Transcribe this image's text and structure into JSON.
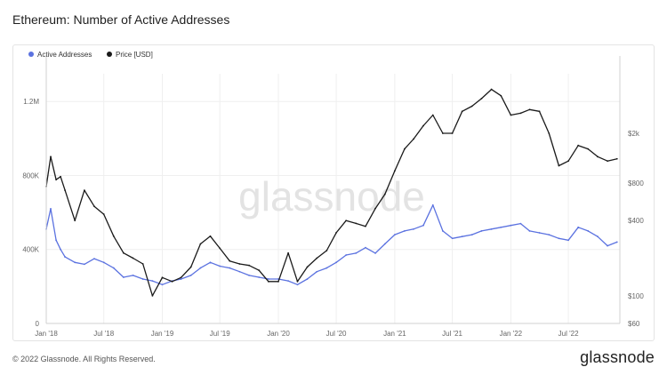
{
  "title": "Ethereum: Number of Active Addresses",
  "footer": {
    "copyright": "© 2022 Glassnode. All Rights Reserved.",
    "brand": "glassnode"
  },
  "watermark": "glassnode",
  "colors": {
    "active": "#5b72e0",
    "price": "#1a1a1a",
    "grid": "#efefef",
    "axis_text": "#666666"
  },
  "chart_data": {
    "type": "line",
    "legend": [
      {
        "name": "Active Addresses",
        "color": "#5b72e0"
      },
      {
        "name": "Price [USD]",
        "color": "#1a1a1a"
      }
    ],
    "legend_position": "top-left",
    "grid": true,
    "x_ticks": [
      "Jan '18",
      "Jul '18",
      "Jan '19",
      "Jul '19",
      "Jan '20",
      "Jul '20",
      "Jan '21",
      "Jul '21",
      "Jan '22",
      "Jul '22"
    ],
    "y_left": {
      "ticks": [
        "0",
        "400K",
        "800K",
        "1.2M"
      ],
      "tick_values": [
        0,
        400000,
        800000,
        1200000
      ],
      "range": [
        0,
        1350000
      ]
    },
    "y_right": {
      "scale": "log",
      "ticks": [
        "$60",
        "$100",
        "$400",
        "$800",
        "$2k"
      ],
      "tick_values": [
        60,
        100,
        400,
        800,
        2000
      ],
      "range": [
        60,
        6000
      ]
    },
    "series": [
      {
        "name": "Active Addresses",
        "axis": "left",
        "x": [
          "2018-01-01",
          "2018-01-15",
          "2018-02-01",
          "2018-02-15",
          "2018-03-01",
          "2018-04-01",
          "2018-05-01",
          "2018-06-01",
          "2018-07-01",
          "2018-08-01",
          "2018-09-01",
          "2018-10-01",
          "2018-11-01",
          "2018-12-01",
          "2019-01-01",
          "2019-02-01",
          "2019-03-01",
          "2019-04-01",
          "2019-05-01",
          "2019-06-01",
          "2019-07-01",
          "2019-08-01",
          "2019-09-01",
          "2019-10-01",
          "2019-11-01",
          "2019-12-01",
          "2020-01-01",
          "2020-02-01",
          "2020-03-01",
          "2020-04-01",
          "2020-05-01",
          "2020-06-01",
          "2020-07-01",
          "2020-08-01",
          "2020-09-01",
          "2020-10-01",
          "2020-11-01",
          "2020-12-01",
          "2021-01-01",
          "2021-02-01",
          "2021-03-01",
          "2021-04-01",
          "2021-05-01",
          "2021-06-01",
          "2021-07-01",
          "2021-08-01",
          "2021-09-01",
          "2021-10-01",
          "2021-11-01",
          "2021-12-01",
          "2022-01-01",
          "2022-02-01",
          "2022-03-01",
          "2022-04-01",
          "2022-05-01",
          "2022-06-01",
          "2022-07-01",
          "2022-08-01",
          "2022-09-01",
          "2022-10-01",
          "2022-11-01",
          "2022-12-01"
        ],
        "values": [
          510000,
          620000,
          450000,
          400000,
          360000,
          330000,
          320000,
          350000,
          330000,
          300000,
          250000,
          260000,
          240000,
          230000,
          210000,
          230000,
          240000,
          260000,
          300000,
          330000,
          310000,
          300000,
          280000,
          260000,
          250000,
          240000,
          240000,
          230000,
          210000,
          240000,
          280000,
          300000,
          330000,
          370000,
          380000,
          410000,
          380000,
          430000,
          480000,
          500000,
          510000,
          530000,
          640000,
          500000,
          460000,
          470000,
          480000,
          500000,
          510000,
          520000,
          530000,
          540000,
          500000,
          490000,
          480000,
          460000,
          450000,
          520000,
          500000,
          470000,
          420000,
          440000
        ]
      },
      {
        "name": "Price [USD]",
        "axis": "right",
        "x": [
          "2018-01-01",
          "2018-01-15",
          "2018-02-01",
          "2018-02-15",
          "2018-03-01",
          "2018-04-01",
          "2018-05-01",
          "2018-06-01",
          "2018-07-01",
          "2018-08-01",
          "2018-09-01",
          "2018-10-01",
          "2018-11-01",
          "2018-12-01",
          "2019-01-01",
          "2019-02-01",
          "2019-03-01",
          "2019-04-01",
          "2019-05-01",
          "2019-06-01",
          "2019-07-01",
          "2019-08-01",
          "2019-09-01",
          "2019-10-01",
          "2019-11-01",
          "2019-12-01",
          "2020-01-01",
          "2020-02-01",
          "2020-03-01",
          "2020-04-01",
          "2020-05-01",
          "2020-06-01",
          "2020-07-01",
          "2020-08-01",
          "2020-09-01",
          "2020-10-01",
          "2020-11-01",
          "2020-12-01",
          "2021-01-01",
          "2021-02-01",
          "2021-03-01",
          "2021-04-01",
          "2021-05-01",
          "2021-06-01",
          "2021-07-01",
          "2021-08-01",
          "2021-09-01",
          "2021-10-01",
          "2021-11-01",
          "2021-12-01",
          "2022-01-01",
          "2022-02-01",
          "2022-03-01",
          "2022-04-01",
          "2022-05-01",
          "2022-06-01",
          "2022-07-01",
          "2022-08-01",
          "2022-09-01",
          "2022-10-01",
          "2022-11-01",
          "2022-12-01"
        ],
        "values": [
          750,
          1300,
          850,
          900,
          700,
          400,
          700,
          520,
          450,
          300,
          220,
          200,
          180,
          100,
          140,
          130,
          140,
          170,
          260,
          300,
          240,
          190,
          180,
          175,
          160,
          130,
          130,
          220,
          130,
          170,
          200,
          230,
          320,
          400,
          380,
          360,
          500,
          650,
          1000,
          1500,
          1800,
          2300,
          2800,
          2000,
          2000,
          3000,
          3300,
          3800,
          4500,
          4000,
          2800,
          2900,
          3100,
          3000,
          2000,
          1100,
          1200,
          1600,
          1500,
          1300,
          1200,
          1250
        ]
      }
    ]
  }
}
